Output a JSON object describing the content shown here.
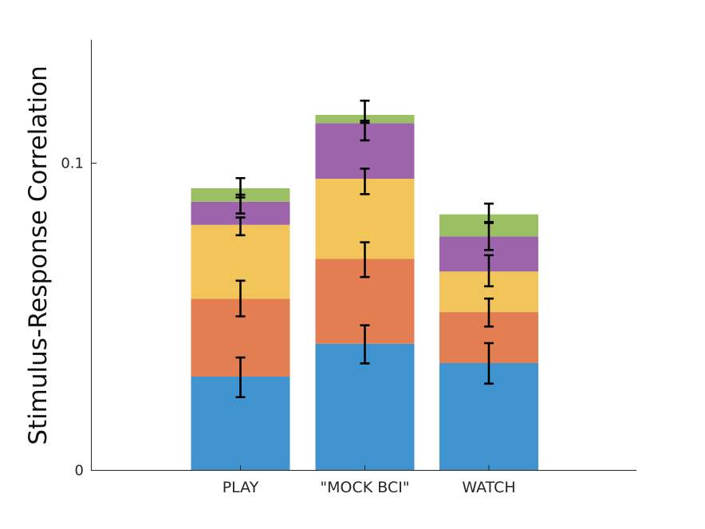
{
  "chart_data": {
    "type": "bar",
    "stacked": true,
    "categories": [
      "PLAY",
      "\"MOCK BCI\"",
      "WATCH"
    ],
    "ylabel": "Stimulus-Response Correlation",
    "xlabel": "",
    "ylim": [
      0,
      0.14
    ],
    "yticks": [
      0,
      0.1
    ],
    "ytick_labels": [
      "0",
      "0.1"
    ],
    "grid": false,
    "legend": "none",
    "series": [
      {
        "color": "#3f94cf",
        "values": [
          0.0304,
          0.0411,
          0.0348
        ],
        "err_low": [
          0.0237,
          0.0347,
          0.0281
        ],
        "err_high": [
          0.0366,
          0.0471,
          0.0413
        ]
      },
      {
        "color": "#e27e51",
        "values": [
          0.0253,
          0.0276,
          0.0166
        ],
        "err_low": [
          0.05,
          0.0628,
          0.0467
        ],
        "err_high": [
          0.0616,
          0.0741,
          0.0558
        ]
      },
      {
        "color": "#f2c55a",
        "values": [
          0.0241,
          0.0261,
          0.0132
        ],
        "err_low": [
          0.0764,
          0.0898,
          0.0598
        ],
        "err_high": [
          0.0822,
          0.0981,
          0.0699
        ]
      },
      {
        "color": "#9e64ab",
        "values": [
          0.0075,
          0.0181,
          0.0114
        ],
        "err_low": [
          0.0835,
          0.1073,
          0.0716
        ],
        "err_high": [
          0.0896,
          0.1137,
          0.0804
        ]
      },
      {
        "color": "#9bc063",
        "values": [
          0.0044,
          0.0027,
          0.0072
        ],
        "err_low": [
          0.0887,
          0.113,
          0.0807
        ],
        "err_high": [
          0.095,
          0.1202,
          0.0867
        ]
      }
    ]
  }
}
